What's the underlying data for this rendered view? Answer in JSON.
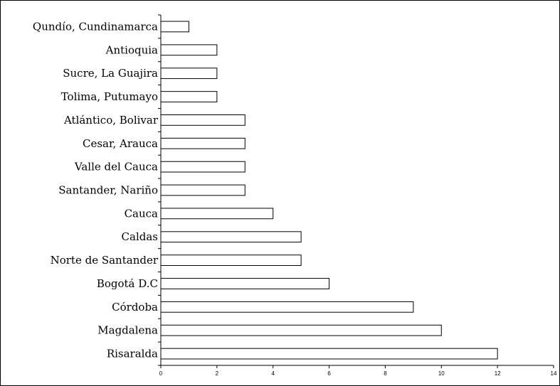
{
  "chart_data": {
    "type": "bar",
    "orientation": "horizontal",
    "categories": [
      "Qundío, Cundinamarca",
      "Antioquia",
      "Sucre, La Guajira",
      "Tolima, Putumayo",
      "Atlántico, Bolivar",
      "Cesar, Arauca",
      "Valle del Cauca",
      "Santander, Nariño",
      "Cauca",
      "Caldas",
      "Norte de Santander",
      "Bogotá D.C",
      "Córdoba",
      "Magdalena",
      "Risaralda"
    ],
    "values": [
      1,
      2,
      2,
      2,
      3,
      3,
      3,
      3,
      4,
      5,
      5,
      6,
      9,
      10,
      12
    ],
    "xlim": [
      0,
      14
    ],
    "xticks": [
      "0",
      "2",
      "4",
      "6",
      "8",
      "10",
      "12",
      "14"
    ],
    "title": "",
    "xlabel": "",
    "ylabel": "",
    "grid": false,
    "bar_fill": "#ffffff",
    "bar_stroke": "#000000"
  }
}
